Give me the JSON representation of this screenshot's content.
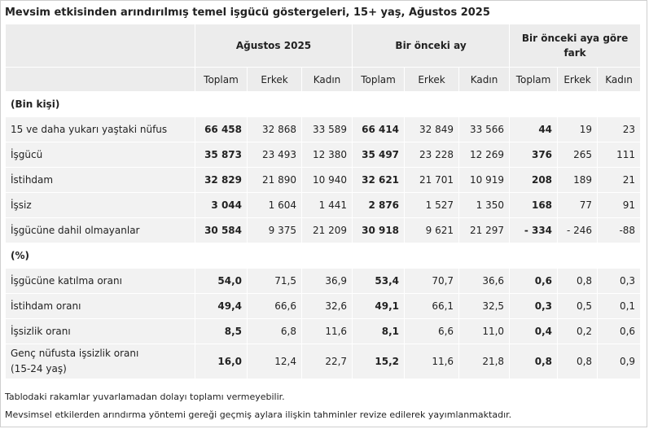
{
  "title": "Mevsim etkisinden arındırılmış temel işgücü göstergeleri, 15+ yaş, Ağustos 2025",
  "header": {
    "groups": [
      "Ağustos 2025",
      "Bir önceki ay",
      "Bir önceki aya göre fark"
    ],
    "sub": [
      "Toplam",
      "Erkek",
      "Kadın",
      "Toplam",
      "Erkek",
      "Kadın",
      "Toplam",
      "Erkek",
      "Kadın"
    ]
  },
  "section1": {
    "label": "(Bin kişi)",
    "rows": [
      {
        "label": "15 ve daha yukarı yaştaki nüfus",
        "v": [
          "66 458",
          "32 868",
          "33 589",
          "66 414",
          "32 849",
          "33 566",
          "44",
          "19",
          "23"
        ]
      },
      {
        "label": "İşgücü",
        "v": [
          "35 873",
          "23 493",
          "12 380",
          "35 497",
          "23 228",
          "12 269",
          "376",
          "265",
          "111"
        ]
      },
      {
        "label": "İstihdam",
        "v": [
          "32 829",
          "21 890",
          "10 940",
          "32 621",
          "21 701",
          "10 919",
          "208",
          "189",
          "21"
        ]
      },
      {
        "label": "İşsiz",
        "v": [
          "3 044",
          "1 604",
          "1 441",
          "2 876",
          "1 527",
          "1 350",
          "168",
          "77",
          "91"
        ]
      },
      {
        "label": "İşgücüne dahil olmayanlar",
        "v": [
          "30 584",
          "9 375",
          "21 209",
          "30 918",
          "9 621",
          "21 297",
          "- 334",
          "- 246",
          "-88"
        ]
      }
    ]
  },
  "section2": {
    "label": "(%)",
    "rows": [
      {
        "label": "İşgücüne katılma oranı",
        "v": [
          "54,0",
          "71,5",
          "36,9",
          "53,4",
          "70,7",
          "36,6",
          "0,6",
          "0,8",
          "0,3"
        ]
      },
      {
        "label": "İstihdam oranı",
        "v": [
          "49,4",
          "66,6",
          "32,6",
          "49,1",
          "66,1",
          "32,5",
          "0,3",
          "0,5",
          "0,1"
        ]
      },
      {
        "label": "İşsizlik oranı",
        "v": [
          "8,5",
          "6,8",
          "11,6",
          "8,1",
          "6,6",
          "11,0",
          "0,4",
          "0,2",
          "0,6"
        ]
      },
      {
        "label": "Genç nüfusta işsizlik oranı (15-24 yaş)",
        "v": [
          "16,0",
          "12,4",
          "22,7",
          "15,2",
          "11,6",
          "21,8",
          "0,8",
          "0,8",
          "0,9"
        ]
      }
    ]
  },
  "footnotes": [
    "Tablodaki rakamlar yuvarlamadan dolayı toplamı vermeyebilir.",
    "Mevsimsel etkilerden arındırma yöntemi gereği geçmiş aylara ilişkin tahminler revize edilerek yayımlanmaktadır."
  ]
}
